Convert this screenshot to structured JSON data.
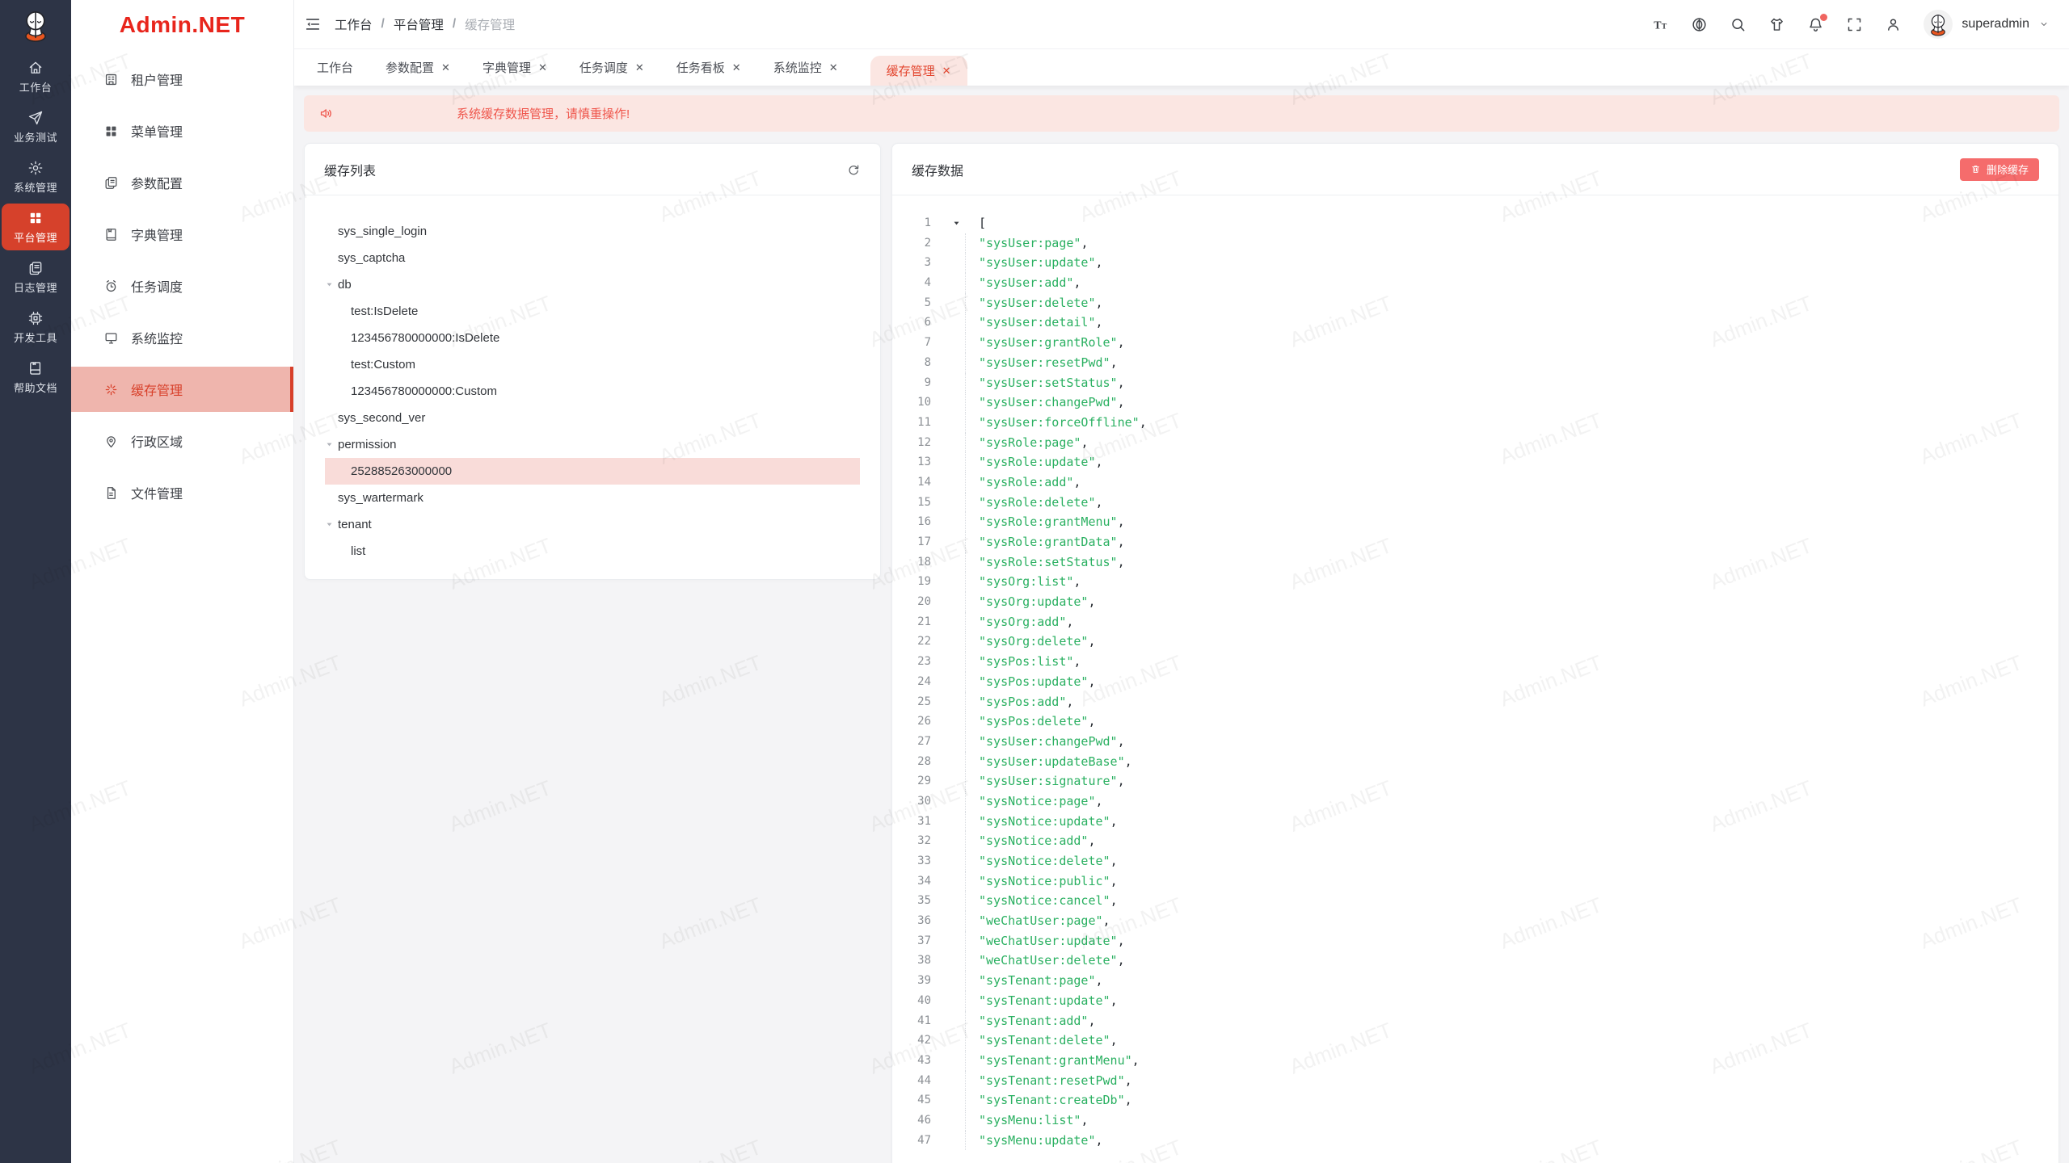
{
  "watermark": "Admin.NET",
  "brand": {
    "logo_text": "Admin.NET",
    "mascot": "admin-net-mascot"
  },
  "colors": {
    "brand_red": "#e8251c",
    "rail_bg": "#2d3446",
    "rail_active": "#d6412b",
    "menu_active_bg": "#efb5ad",
    "menu_active_text": "#d8402a",
    "tab_active_bg": "#fbe6e2",
    "tab_active_text": "#e3452e",
    "banner_bg": "#fbe6e2",
    "banner_text": "#ef564c",
    "tree_selected_bg": "#f9dcd9",
    "danger_button": "#f56c6c",
    "json_string_green": "#2ab061"
  },
  "rail": {
    "items": [
      {
        "label": "工作台",
        "icon": "home",
        "active": false
      },
      {
        "label": "业务测试",
        "icon": "send",
        "active": false
      },
      {
        "label": "系统管理",
        "icon": "gear",
        "active": false
      },
      {
        "label": "平台管理",
        "icon": "grid",
        "active": true
      },
      {
        "label": "日志管理",
        "icon": "logs",
        "active": false
      },
      {
        "label": "开发工具",
        "icon": "chip",
        "active": false
      },
      {
        "label": "帮助文档",
        "icon": "book",
        "active": false
      }
    ]
  },
  "submenu": {
    "items": [
      {
        "label": "租户管理",
        "icon": "building",
        "active": false
      },
      {
        "label": "菜单管理",
        "icon": "menugrid",
        "active": false
      },
      {
        "label": "参数配置",
        "icon": "copy",
        "active": false
      },
      {
        "label": "字典管理",
        "icon": "dict",
        "active": false
      },
      {
        "label": "任务调度",
        "icon": "alarm",
        "active": false
      },
      {
        "label": "系统监控",
        "icon": "monitor",
        "active": false
      },
      {
        "label": "缓存管理",
        "icon": "cache",
        "active": true
      },
      {
        "label": "行政区域",
        "icon": "pin",
        "active": false
      },
      {
        "label": "文件管理",
        "icon": "file",
        "active": false
      }
    ]
  },
  "topbar": {
    "breadcrumb": [
      "工作台",
      "平台管理",
      "缓存管理"
    ],
    "separator": "/",
    "username": "superadmin",
    "icons": [
      "font-size",
      "language",
      "search",
      "theme-shirt",
      "bell",
      "fullscreen",
      "user"
    ]
  },
  "tabs": [
    {
      "label": "工作台",
      "closable": false,
      "active": false
    },
    {
      "label": "参数配置",
      "closable": true,
      "active": false
    },
    {
      "label": "字典管理",
      "closable": true,
      "active": false
    },
    {
      "label": "任务调度",
      "closable": true,
      "active": false
    },
    {
      "label": "任务看板",
      "closable": true,
      "active": false
    },
    {
      "label": "系统监控",
      "closable": true,
      "active": false
    },
    {
      "label": "缓存管理",
      "closable": true,
      "active": true
    }
  ],
  "banner": {
    "text": "系统缓存数据管理，请慎重操作!"
  },
  "cache_list": {
    "title": "缓存列表",
    "tree": [
      {
        "label": "sys_single_login",
        "depth": 0,
        "expanded": false,
        "selected": false
      },
      {
        "label": "sys_captcha",
        "depth": 0,
        "expanded": false,
        "selected": false
      },
      {
        "label": "db",
        "depth": 0,
        "expanded": true,
        "selected": false
      },
      {
        "label": "test:IsDelete",
        "depth": 1,
        "expanded": false,
        "selected": false
      },
      {
        "label": "123456780000000:IsDelete",
        "depth": 1,
        "expanded": false,
        "selected": false
      },
      {
        "label": "test:Custom",
        "depth": 1,
        "expanded": false,
        "selected": false
      },
      {
        "label": "123456780000000:Custom",
        "depth": 1,
        "expanded": false,
        "selected": false
      },
      {
        "label": "sys_second_ver",
        "depth": 0,
        "expanded": false,
        "selected": false
      },
      {
        "label": "permission",
        "depth": 0,
        "expanded": true,
        "selected": false
      },
      {
        "label": "252885263000000",
        "depth": 1,
        "expanded": false,
        "selected": true
      },
      {
        "label": "sys_wartermark",
        "depth": 0,
        "expanded": false,
        "selected": false
      },
      {
        "label": "tenant",
        "depth": 0,
        "expanded": true,
        "selected": false
      },
      {
        "label": "list",
        "depth": 1,
        "expanded": false,
        "selected": false
      }
    ]
  },
  "cache_data": {
    "title": "缓存数据",
    "delete_button": "删除缓存",
    "code": {
      "open": "[",
      "values": [
        "sysUser:page",
        "sysUser:update",
        "sysUser:add",
        "sysUser:delete",
        "sysUser:detail",
        "sysUser:grantRole",
        "sysUser:resetPwd",
        "sysUser:setStatus",
        "sysUser:changePwd",
        "sysUser:forceOffline",
        "sysRole:page",
        "sysRole:update",
        "sysRole:add",
        "sysRole:delete",
        "sysRole:grantMenu",
        "sysRole:grantData",
        "sysRole:setStatus",
        "sysOrg:list",
        "sysOrg:update",
        "sysOrg:add",
        "sysOrg:delete",
        "sysPos:list",
        "sysPos:update",
        "sysPos:add",
        "sysPos:delete",
        "sysUser:changePwd",
        "sysUser:updateBase",
        "sysUser:signature",
        "sysNotice:page",
        "sysNotice:update",
        "sysNotice:add",
        "sysNotice:delete",
        "sysNotice:public",
        "sysNotice:cancel",
        "weChatUser:page",
        "weChatUser:update",
        "weChatUser:delete",
        "sysTenant:page",
        "sysTenant:update",
        "sysTenant:add",
        "sysTenant:delete",
        "sysTenant:grantMenu",
        "sysTenant:resetPwd",
        "sysTenant:createDb",
        "sysMenu:list",
        "sysMenu:update"
      ]
    }
  }
}
